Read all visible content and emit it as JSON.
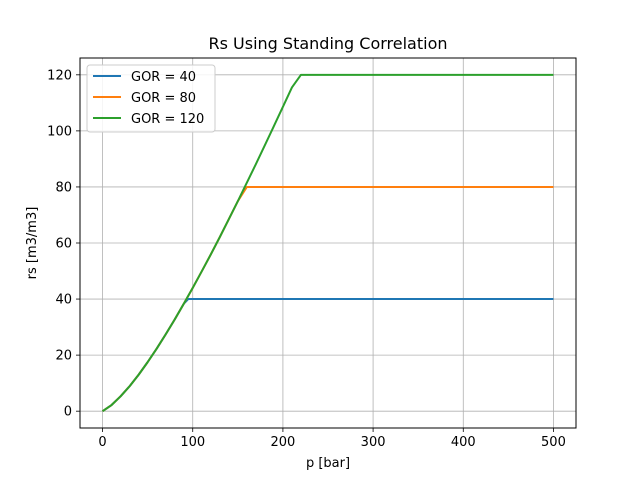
{
  "chart_data": {
    "type": "line",
    "title": "Rs Using Standing Correlation",
    "xlabel": "p [bar]",
    "ylabel": "rs [m3/m3]",
    "xlim": [
      -25,
      525
    ],
    "ylim": [
      -6,
      126
    ],
    "xticks": [
      0,
      100,
      200,
      300,
      400,
      500
    ],
    "yticks": [
      0,
      20,
      40,
      60,
      80,
      100,
      120
    ],
    "grid": true,
    "legend_position": "upper-left",
    "series": [
      {
        "name": "GOR = 40",
        "color": "#1f77b4",
        "x": [
          0,
          10,
          20,
          30,
          40,
          50,
          60,
          70,
          80,
          90,
          95,
          100,
          200,
          300,
          400,
          500
        ],
        "y": [
          0,
          2.2,
          5.3,
          8.9,
          13,
          17.5,
          22.3,
          27.4,
          32.7,
          38.3,
          40,
          40,
          40,
          40,
          40,
          40
        ]
      },
      {
        "name": "GOR = 80",
        "color": "#ff7f0e",
        "x": [
          0,
          10,
          20,
          30,
          40,
          50,
          60,
          70,
          80,
          90,
          100,
          110,
          120,
          130,
          140,
          150,
          160,
          168,
          200,
          300,
          400,
          500
        ],
        "y": [
          0,
          2.2,
          5.3,
          8.9,
          13,
          17.5,
          22.3,
          27.4,
          32.7,
          38.3,
          44,
          49.9,
          55.9,
          62.1,
          68.5,
          74.9,
          81.5,
          80,
          80,
          80,
          80,
          80
        ]
      },
      {
        "name": "GOR = 120",
        "color": "#2ca02c",
        "x": [
          0,
          10,
          20,
          30,
          40,
          50,
          60,
          70,
          80,
          90,
          100,
          110,
          120,
          130,
          140,
          150,
          160,
          170,
          180,
          190,
          200,
          210,
          220,
          230,
          234,
          300,
          400,
          500
        ],
        "y": [
          0,
          2.2,
          5.3,
          8.9,
          13,
          17.5,
          22.3,
          27.4,
          32.7,
          38.3,
          44,
          49.9,
          55.9,
          62.1,
          68.5,
          74.9,
          81.5,
          88.1,
          94.9,
          101.7,
          108.6,
          115.5,
          122.6,
          129.7,
          120,
          120,
          120,
          120
        ]
      }
    ]
  }
}
